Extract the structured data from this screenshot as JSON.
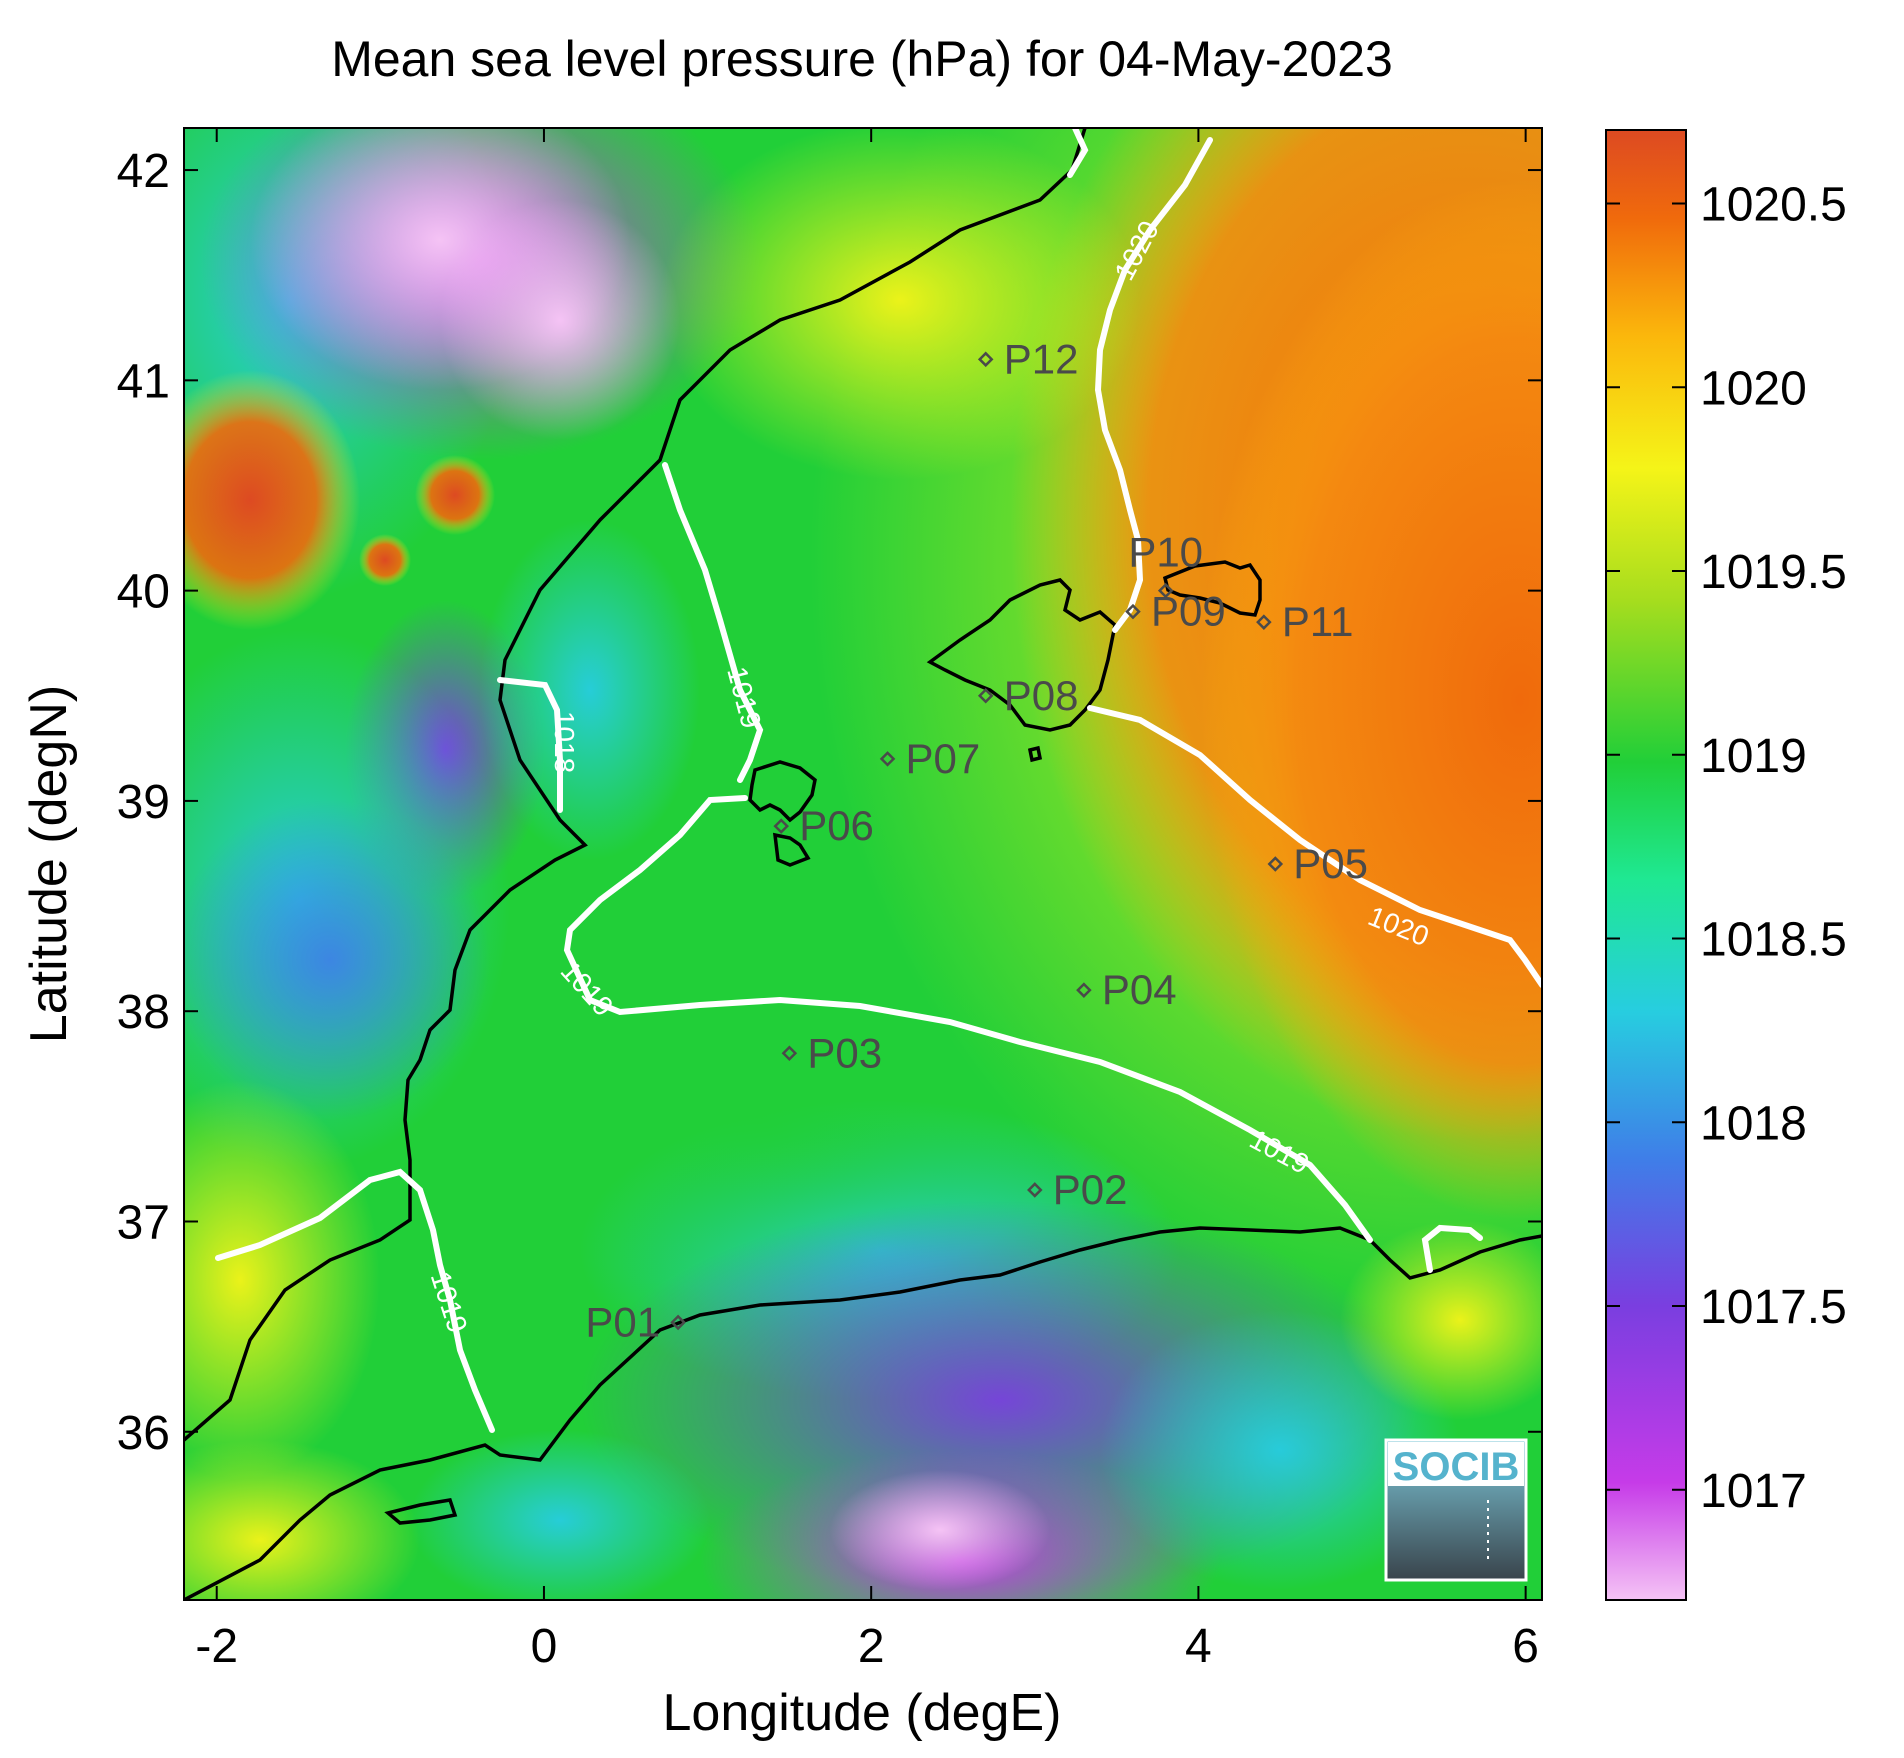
{
  "title": "Mean sea level pressure (hPa) for 04-May-2023",
  "x_axis": {
    "label": "Longitude (degE)",
    "ticks": [
      "-2",
      "0",
      "2",
      "4",
      "6"
    ]
  },
  "y_axis": {
    "label": "Latitude (degN)",
    "ticks": [
      "36",
      "37",
      "38",
      "39",
      "40",
      "41",
      "42"
    ]
  },
  "colorbar": {
    "ticks": [
      "1017",
      "1017.5",
      "1018",
      "1018.5",
      "1019",
      "1019.5",
      "1020",
      "1020.5"
    ]
  },
  "contour_labels": [
    "1018",
    "1019",
    "1019",
    "1019",
    "1019",
    "1020",
    "1020"
  ],
  "stations": [
    "P01",
    "P02",
    "P03",
    "P04",
    "P05",
    "P06",
    "P07",
    "P08",
    "P09",
    "P10",
    "P11",
    "P12"
  ],
  "logo": {
    "text": "SOCIB"
  },
  "colors": {
    "colormap": [
      "#f5c3f5",
      "#c63be8",
      "#7a3ee0",
      "#3f7ee8",
      "#27cde0",
      "#1fe893",
      "#21cf38",
      "#a6dd1e",
      "#f5f418",
      "#fbb70c",
      "#f06a0c",
      "#dd4a22"
    ],
    "contour": "#ffffff",
    "coastline": "#000000",
    "station": "#4a4a4a"
  },
  "chart_data": {
    "type": "heatmap",
    "variable": "Mean sea level pressure",
    "unit": "hPa",
    "date": "04-May-2023",
    "xlim": [
      -2.2,
      6.1
    ],
    "ylim": [
      35.2,
      42.2
    ],
    "clim": [
      1016.7,
      1020.7
    ],
    "contour_levels": [
      1018,
      1019,
      1020
    ],
    "stations": [
      {
        "name": "P01",
        "lon": 0.82,
        "lat": 36.52
      },
      {
        "name": "P02",
        "lon": 3.0,
        "lat": 37.15
      },
      {
        "name": "P03",
        "lon": 1.5,
        "lat": 37.8
      },
      {
        "name": "P04",
        "lon": 3.3,
        "lat": 38.1
      },
      {
        "name": "P05",
        "lon": 4.47,
        "lat": 38.7
      },
      {
        "name": "P06",
        "lon": 1.45,
        "lat": 38.88
      },
      {
        "name": "P07",
        "lon": 2.1,
        "lat": 39.2
      },
      {
        "name": "P08",
        "lon": 2.7,
        "lat": 39.5
      },
      {
        "name": "P09",
        "lon": 3.6,
        "lat": 39.9
      },
      {
        "name": "P10",
        "lon": 3.8,
        "lat": 40.0
      },
      {
        "name": "P11",
        "lon": 4.4,
        "lat": 39.85
      },
      {
        "name": "P12",
        "lon": 2.7,
        "lat": 41.1
      }
    ]
  }
}
